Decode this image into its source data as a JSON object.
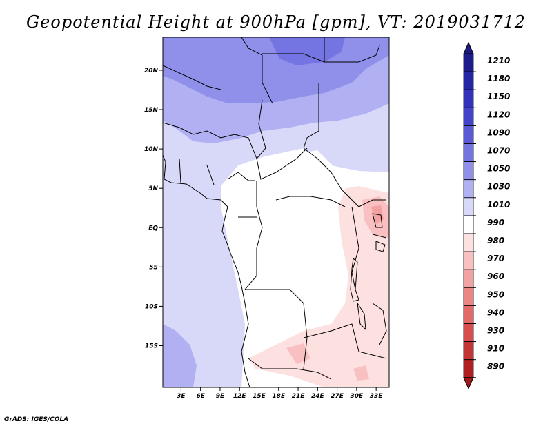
{
  "title": "Geopotential Height at 900hPa [gpm], VT: 2019031712",
  "credit": "GrADS: IGES/COLA",
  "map": {
    "lat_ticks": [
      {
        "lat": 20,
        "label": "20N"
      },
      {
        "lat": 15,
        "label": "15N"
      },
      {
        "lat": 10,
        "label": "10N"
      },
      {
        "lat": 5,
        "label": "5N"
      },
      {
        "lat": 0,
        "label": "EQ"
      },
      {
        "lat": -5,
        "label": "5S"
      },
      {
        "lat": -10,
        "label": "10S"
      },
      {
        "lat": -15,
        "label": "15S"
      }
    ],
    "lon_ticks": [
      {
        "lon": 3,
        "label": "3E"
      },
      {
        "lon": 6,
        "label": "6E"
      },
      {
        "lon": 9,
        "label": "9E"
      },
      {
        "lon": 12,
        "label": "12E"
      },
      {
        "lon": 15,
        "label": "15E"
      },
      {
        "lon": 18,
        "label": "18E"
      },
      {
        "lon": 21,
        "label": "21E"
      },
      {
        "lon": 24,
        "label": "24E"
      },
      {
        "lon": 27,
        "label": "27E"
      },
      {
        "lon": 30,
        "label": "30E"
      },
      {
        "lon": 33,
        "label": "33E"
      }
    ]
  },
  "colorbar": {
    "levels": [
      {
        "label": "1210",
        "color": "#1c1c8c"
      },
      {
        "label": "1180",
        "color": "#2525a8"
      },
      {
        "label": "1150",
        "color": "#3232bc"
      },
      {
        "label": "1120",
        "color": "#4343cc"
      },
      {
        "label": "1090",
        "color": "#5a5ad8"
      },
      {
        "label": "1070",
        "color": "#7474e2"
      },
      {
        "label": "1050",
        "color": "#9090ea"
      },
      {
        "label": "1030",
        "color": "#b0b0f2"
      },
      {
        "label": "1010",
        "color": "#d8d8f8"
      },
      {
        "label": "990",
        "color": "#ffffff"
      },
      {
        "label": "980",
        "color": "#fde0e0"
      },
      {
        "label": "970",
        "color": "#f8c0c0"
      },
      {
        "label": "960",
        "color": "#f2a2a2"
      },
      {
        "label": "950",
        "color": "#ec8585"
      },
      {
        "label": "940",
        "color": "#e46a6a"
      },
      {
        "label": "930",
        "color": "#d84e4e"
      },
      {
        "label": "910",
        "color": "#c43636"
      },
      {
        "label": "890",
        "color": "#b02020"
      }
    ],
    "top_color": "#1a1a80",
    "bottom_color": "#a01818"
  }
}
